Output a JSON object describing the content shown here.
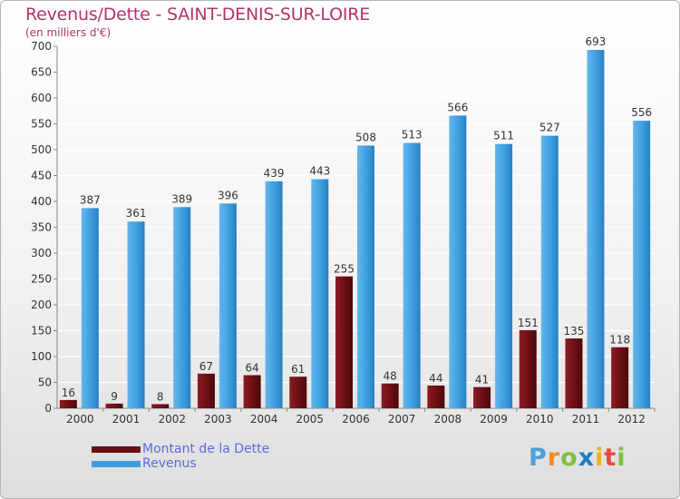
{
  "chart_data": {
    "type": "bar",
    "title": "Revenus/Dette - SAINT-DENIS-SUR-LOIRE",
    "subtitle": "(en milliers d'€)",
    "categories": [
      "2000",
      "2001",
      "2002",
      "2003",
      "2004",
      "2005",
      "2006",
      "2007",
      "2008",
      "2009",
      "2010",
      "2011",
      "2012"
    ],
    "series": [
      {
        "name": "Montant de la Dette",
        "color": "#6b0f14",
        "values": [
          16,
          9,
          8,
          67,
          64,
          61,
          255,
          48,
          44,
          41,
          151,
          135,
          118
        ]
      },
      {
        "name": "Revenus",
        "color": "#3d9ee0",
        "values": [
          387,
          361,
          389,
          396,
          439,
          443,
          508,
          513,
          566,
          511,
          527,
          693,
          556
        ]
      }
    ],
    "yticks": [
      0,
      50,
      100,
      150,
      200,
      250,
      300,
      350,
      400,
      450,
      500,
      550,
      600,
      650,
      700
    ],
    "ylim": [
      0,
      700
    ],
    "grid": true,
    "legend_position": "bottom-left"
  },
  "logo": {
    "text": "Proxiti"
  }
}
